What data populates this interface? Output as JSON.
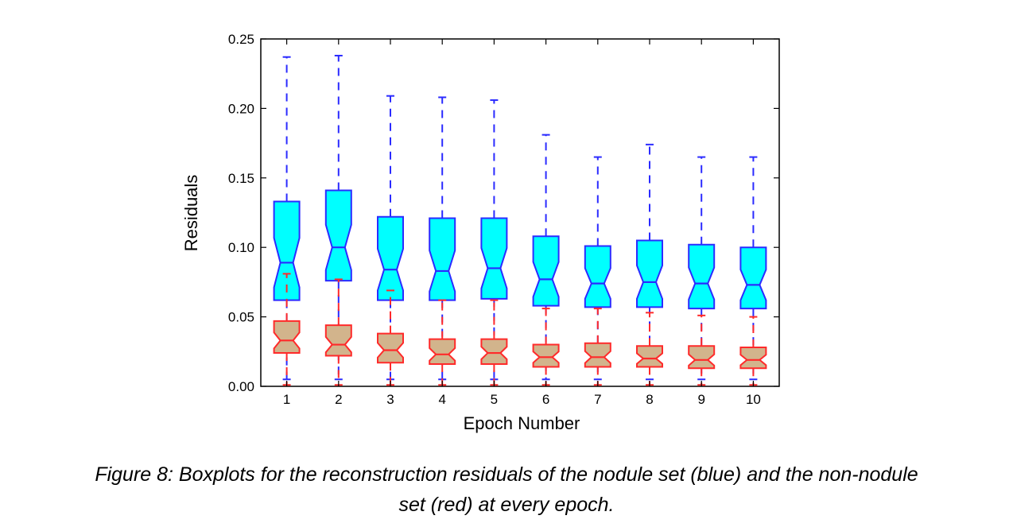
{
  "chart_data": {
    "type": "boxplot",
    "categories": [
      "1",
      "2",
      "3",
      "4",
      "5",
      "6",
      "7",
      "8",
      "9",
      "10"
    ],
    "xlabel": "Epoch Number",
    "ylabel": "Residuals",
    "ylim": [
      0,
      0.25
    ],
    "yticks": [
      0.0,
      0.05,
      0.1,
      0.15,
      0.2,
      0.25
    ],
    "ytick_labels": [
      "0.00",
      "0.05",
      "0.10",
      "0.15",
      "0.20",
      "0.25"
    ],
    "notched": true,
    "series": [
      {
        "color_edge": "#2b2bff",
        "color_fill": "#00ffff",
        "whisker_low": [
          0.005,
          0.005,
          0.005,
          0.005,
          0.005,
          0.005,
          0.005,
          0.005,
          0.005,
          0.005
        ],
        "q1": [
          0.062,
          0.076,
          0.062,
          0.062,
          0.063,
          0.058,
          0.057,
          0.057,
          0.056,
          0.056
        ],
        "median": [
          0.089,
          0.1,
          0.084,
          0.083,
          0.085,
          0.077,
          0.074,
          0.075,
          0.074,
          0.073
        ],
        "q3": [
          0.133,
          0.141,
          0.122,
          0.121,
          0.121,
          0.108,
          0.101,
          0.105,
          0.102,
          0.1
        ],
        "whisker_high": [
          0.237,
          0.238,
          0.209,
          0.208,
          0.206,
          0.181,
          0.165,
          0.174,
          0.165,
          0.165
        ]
      },
      {
        "color_edge": "#ff2a2a",
        "color_fill": "#d2b48c",
        "whisker_low": [
          0.001,
          0.001,
          0.001,
          0.001,
          0.001,
          0.001,
          0.001,
          0.001,
          0.001,
          0.001
        ],
        "q1": [
          0.024,
          0.022,
          0.017,
          0.016,
          0.016,
          0.014,
          0.014,
          0.014,
          0.013,
          0.013
        ],
        "median": [
          0.033,
          0.03,
          0.026,
          0.023,
          0.024,
          0.021,
          0.021,
          0.02,
          0.019,
          0.019
        ],
        "q3": [
          0.047,
          0.044,
          0.038,
          0.034,
          0.034,
          0.03,
          0.031,
          0.029,
          0.029,
          0.028
        ],
        "whisker_high": [
          0.081,
          0.077,
          0.069,
          0.062,
          0.062,
          0.056,
          0.056,
          0.053,
          0.051,
          0.05
        ]
      }
    ]
  },
  "caption": {
    "line1": "Figure 8: Boxplots for the reconstruction residuals of the nodule set (blue) and the non-nodule",
    "line2": "set (red) at every epoch."
  }
}
